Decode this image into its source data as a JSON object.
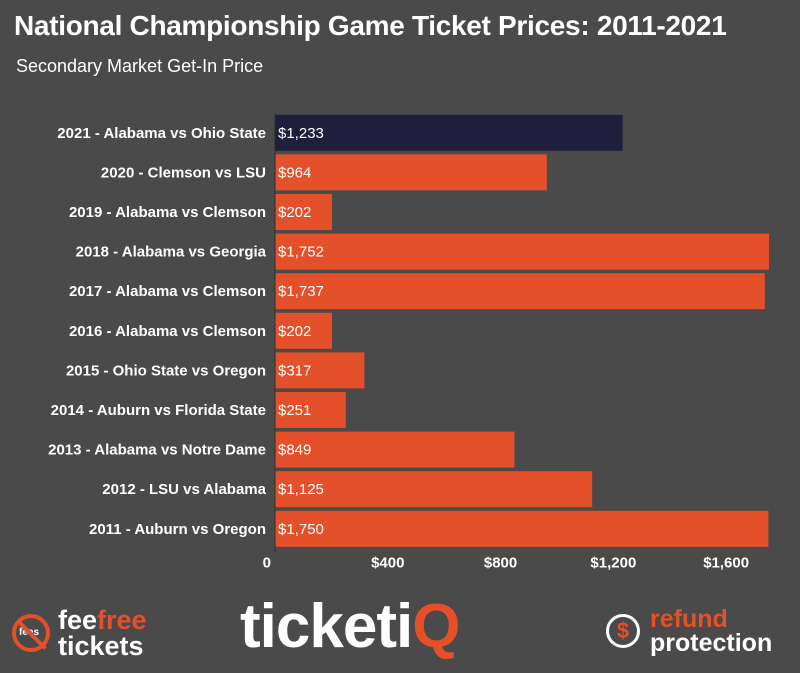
{
  "title": "National Championship Game Ticket Prices: 2011-2021",
  "subtitle": "Secondary Market Get-In Price",
  "chart_data": {
    "type": "bar",
    "orientation": "horizontal",
    "categories": [
      "2021 - Alabama vs Ohio State",
      "2020 - Clemson vs LSU",
      "2019 - Alabama vs Clemson",
      "2018 - Alabama vs Georgia",
      "2017 - Alabama vs Clemson",
      "2016 - Alabama vs Clemson",
      "2015 - Ohio State vs Oregon",
      "2014 - Auburn vs Florida State",
      "2013 - Alabama vs Notre Dame",
      "2012 - LSU vs Alabama",
      "2011 - Auburn vs Oregon"
    ],
    "values": [
      1233,
      964,
      202,
      1752,
      1737,
      202,
      317,
      251,
      849,
      1125,
      1750
    ],
    "value_labels": [
      "$1,233",
      "$964",
      "$202",
      "$1,752",
      "$1,737",
      "$202",
      "$317",
      "$251",
      "$849",
      "$1,125",
      "$1,750"
    ],
    "xlim": [
      0,
      1752
    ],
    "xticks": [
      0,
      400,
      800,
      1200,
      1600
    ],
    "xtick_labels": [
      "0",
      "$400",
      "$800",
      "$1,200",
      "$1,600"
    ],
    "grid": false,
    "colors": {
      "highlight": "#1f1f3d",
      "default": "#e4502a",
      "background": "#4a4a4a"
    },
    "highlight_index": 0
  },
  "footer": {
    "left_icon_text": "fees",
    "left_line1_a": "fee",
    "left_line1_b": "free",
    "left_line2": "tickets",
    "center_a": "ticketi",
    "center_b": "Q",
    "right_icon": "$",
    "right_line1": "refund",
    "right_line2": "protection"
  }
}
